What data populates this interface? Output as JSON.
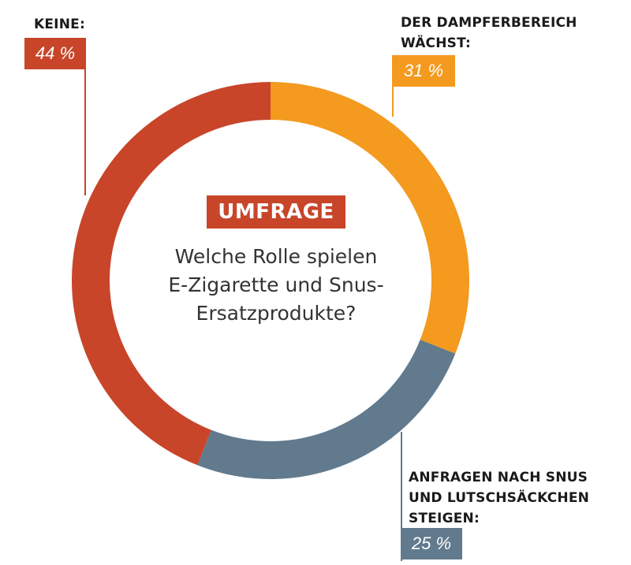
{
  "chart_data": {
    "type": "pie",
    "variant": "donut",
    "start_angle_deg": 0,
    "slices": [
      {
        "label_lines": [
          "DER DAMPFERBEREICH",
          "WÄCHST"
        ],
        "label_suffix": ":",
        "value": 31,
        "value_text": "31 %",
        "color": "#f39a1f"
      },
      {
        "label_lines": [
          "ANFRAGEN NACH SNUS",
          "UND LUTSCHSÄCKCHEN",
          "STEIGEN"
        ],
        "label_suffix": ":",
        "value": 25,
        "value_text": "25 %",
        "color": "#617a8e"
      },
      {
        "label_lines": [
          "KEINE"
        ],
        "label_suffix": ":",
        "value": 44,
        "value_text": "44 %",
        "color": "#c8452a"
      }
    ]
  },
  "center": {
    "badge": "UMFRAGE",
    "badge_color": "#c8452a",
    "question_lines": [
      "Welche Rolle spielen",
      "E-Zigarette und Snus-",
      "Ersatzprodukte?"
    ]
  }
}
